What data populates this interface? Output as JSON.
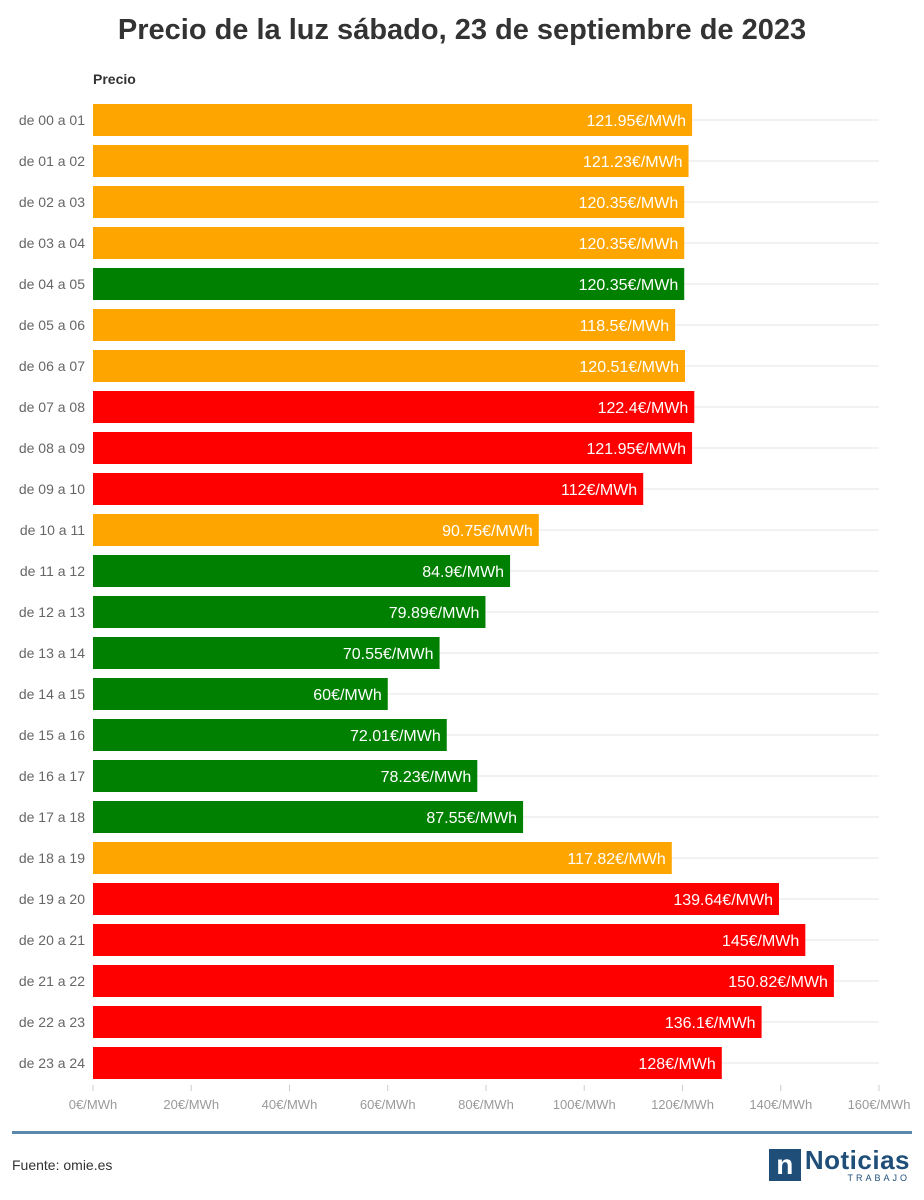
{
  "title": "Precio de la luz sábado, 23 de septiembre de 2023",
  "source": "Fuente: omie.es",
  "logo": {
    "word": "Noticias",
    "sub": "TRABAJO",
    "mark": "n"
  },
  "colors": {
    "orange": "#ffa500",
    "green": "#008000",
    "red": "#ff0000"
  },
  "chart_data": {
    "type": "bar",
    "orientation": "horizontal",
    "title": "Precio de la luz sábado, 23 de septiembre de 2023",
    "column_label": "Precio",
    "xlim": [
      0,
      160
    ],
    "x_ticks": [
      "0€/MWh",
      "20€/MWh",
      "40€/MWh",
      "60€/MWh",
      "80€/MWh",
      "100€/MWh",
      "120€/MWh",
      "140€/MWh",
      "160€/MWh"
    ],
    "x_tick_values": [
      0,
      20,
      40,
      60,
      80,
      100,
      120,
      140,
      160
    ],
    "grid": true,
    "categories": [
      "de 00 a 01",
      "de 01 a 02",
      "de 02 a 03",
      "de 03 a 04",
      "de 04 a 05",
      "de 05 a 06",
      "de 06 a 07",
      "de 07 a 08",
      "de 08 a 09",
      "de 09 a 10",
      "de 10 a 11",
      "de 11 a 12",
      "de 12 a 13",
      "de 13 a 14",
      "de 14 a 15",
      "de 15 a 16",
      "de 16 a 17",
      "de 17 a 18",
      "de 18 a 19",
      "de 19 a 20",
      "de 20 a 21",
      "de 21 a 22",
      "de 22 a 23",
      "de 23 a 24"
    ],
    "values": [
      121.95,
      121.23,
      120.35,
      120.35,
      120.35,
      118.5,
      120.51,
      122.4,
      121.95,
      112,
      90.75,
      84.9,
      79.89,
      70.55,
      60,
      72.01,
      78.23,
      87.55,
      117.82,
      139.64,
      145,
      150.82,
      136.1,
      128
    ],
    "value_labels": [
      "121.95€/MWh",
      "121.23€/MWh",
      "120.35€/MWh",
      "120.35€/MWh",
      "120.35€/MWh",
      "118.5€/MWh",
      "120.51€/MWh",
      "122.4€/MWh",
      "121.95€/MWh",
      "112€/MWh",
      "90.75€/MWh",
      "84.9€/MWh",
      "79.89€/MWh",
      "70.55€/MWh",
      "60€/MWh",
      "72.01€/MWh",
      "78.23€/MWh",
      "87.55€/MWh",
      "117.82€/MWh",
      "139.64€/MWh",
      "145€/MWh",
      "150.82€/MWh",
      "136.1€/MWh",
      "128€/MWh"
    ],
    "bar_colors": [
      "orange",
      "orange",
      "orange",
      "orange",
      "green",
      "orange",
      "orange",
      "red",
      "red",
      "red",
      "orange",
      "green",
      "green",
      "green",
      "green",
      "green",
      "green",
      "green",
      "orange",
      "red",
      "red",
      "red",
      "red",
      "red"
    ]
  }
}
